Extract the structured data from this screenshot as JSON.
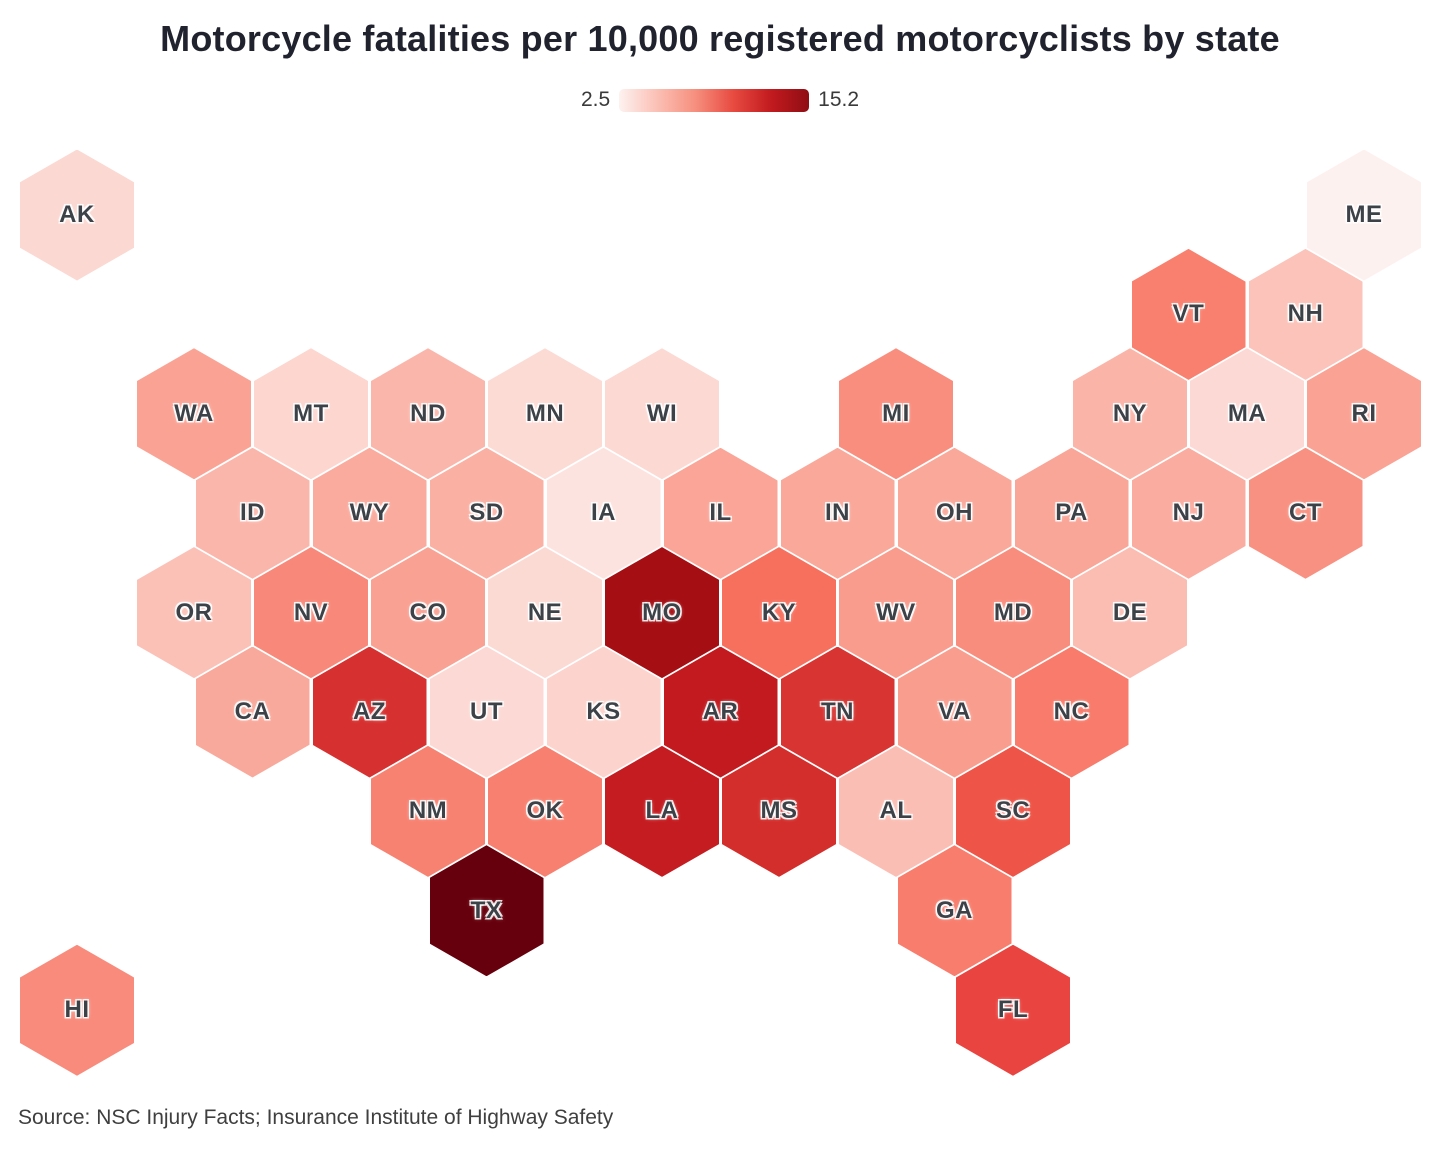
{
  "title": "Motorcycle fatalities per 10,000 registered motorcyclists by state",
  "legend": {
    "min_label": "2.5",
    "max_label": "15.2",
    "gradient_colors": [
      "#fdf2f0",
      "#fbc0b5",
      "#f6907f",
      "#e84b41",
      "#c21a1f",
      "#8f0e13"
    ]
  },
  "source": "Source: NSC Injury Facts; Insurance Institute of Highway Safety",
  "chart_data": {
    "type": "heatmap",
    "subtype": "hex-tile-state-map",
    "title": "Motorcycle fatalities per 10,000 registered motorcyclists by state",
    "legend_position": "top-center",
    "color_scale": {
      "min": 2.5,
      "max": 15.2,
      "min_color": "#fdf2f0",
      "max_color": "#8f0e13"
    },
    "states": [
      {
        "abbr": "AK",
        "row": 0,
        "col": 0,
        "offset": false,
        "color": "#fbd8d1"
      },
      {
        "abbr": "ME",
        "row": 0,
        "col": 11,
        "offset": false,
        "color": "#fdf1ef"
      },
      {
        "abbr": "VT",
        "row": 1,
        "col": 9,
        "offset": true,
        "color": "#f97f6e"
      },
      {
        "abbr": "NH",
        "row": 1,
        "col": 10,
        "offset": true,
        "color": "#fbc3b9"
      },
      {
        "abbr": "WA",
        "row": 2,
        "col": 1,
        "offset": false,
        "color": "#faa395"
      },
      {
        "abbr": "MT",
        "row": 2,
        "col": 2,
        "offset": false,
        "color": "#fcd6cf"
      },
      {
        "abbr": "ND",
        "row": 2,
        "col": 3,
        "offset": false,
        "color": "#fbb6ab"
      },
      {
        "abbr": "MN",
        "row": 2,
        "col": 4,
        "offset": false,
        "color": "#fcdbd5"
      },
      {
        "abbr": "WI",
        "row": 2,
        "col": 5,
        "offset": false,
        "color": "#fcd9d3"
      },
      {
        "abbr": "MI",
        "row": 2,
        "col": 7,
        "offset": false,
        "color": "#f98e7e"
      },
      {
        "abbr": "NY",
        "row": 2,
        "col": 9,
        "offset": false,
        "color": "#fab4a8"
      },
      {
        "abbr": "MA",
        "row": 2,
        "col": 10,
        "offset": false,
        "color": "#fcd9d4"
      },
      {
        "abbr": "RI",
        "row": 2,
        "col": 11,
        "offset": false,
        "color": "#faa294"
      },
      {
        "abbr": "ID",
        "row": 3,
        "col": 1,
        "offset": true,
        "color": "#fbb6ab"
      },
      {
        "abbr": "WY",
        "row": 3,
        "col": 2,
        "offset": true,
        "color": "#faab9e"
      },
      {
        "abbr": "SD",
        "row": 3,
        "col": 3,
        "offset": true,
        "color": "#fab0a3"
      },
      {
        "abbr": "IA",
        "row": 3,
        "col": 4,
        "offset": true,
        "color": "#fde3df"
      },
      {
        "abbr": "IL",
        "row": 3,
        "col": 5,
        "offset": true,
        "color": "#faa597"
      },
      {
        "abbr": "IN",
        "row": 3,
        "col": 6,
        "offset": true,
        "color": "#f9a89a"
      },
      {
        "abbr": "OH",
        "row": 3,
        "col": 7,
        "offset": true,
        "color": "#f9a89a"
      },
      {
        "abbr": "PA",
        "row": 3,
        "col": 8,
        "offset": true,
        "color": "#f9a597"
      },
      {
        "abbr": "NJ",
        "row": 3,
        "col": 9,
        "offset": true,
        "color": "#faaca0"
      },
      {
        "abbr": "CT",
        "row": 3,
        "col": 10,
        "offset": true,
        "color": "#f89181"
      },
      {
        "abbr": "OR",
        "row": 4,
        "col": 1,
        "offset": false,
        "color": "#fbc1b7"
      },
      {
        "abbr": "NV",
        "row": 4,
        "col": 2,
        "offset": false,
        "color": "#f8897a"
      },
      {
        "abbr": "CO",
        "row": 4,
        "col": 3,
        "offset": false,
        "color": "#f9a193"
      },
      {
        "abbr": "NE",
        "row": 4,
        "col": 4,
        "offset": false,
        "color": "#fcdad4"
      },
      {
        "abbr": "MO",
        "row": 4,
        "col": 5,
        "offset": false,
        "color": "#a50e13"
      },
      {
        "abbr": "KY",
        "row": 4,
        "col": 6,
        "offset": false,
        "color": "#f7705e"
      },
      {
        "abbr": "WV",
        "row": 4,
        "col": 7,
        "offset": false,
        "color": "#f99c8d"
      },
      {
        "abbr": "MD",
        "row": 4,
        "col": 8,
        "offset": false,
        "color": "#f98d7d"
      },
      {
        "abbr": "DE",
        "row": 4,
        "col": 9,
        "offset": false,
        "color": "#fbbcb2"
      },
      {
        "abbr": "CA",
        "row": 5,
        "col": 1,
        "offset": true,
        "color": "#f9a99b"
      },
      {
        "abbr": "AZ",
        "row": 5,
        "col": 2,
        "offset": true,
        "color": "#d63130"
      },
      {
        "abbr": "UT",
        "row": 5,
        "col": 3,
        "offset": true,
        "color": "#fcd9d4"
      },
      {
        "abbr": "KS",
        "row": 5,
        "col": 4,
        "offset": true,
        "color": "#fcd3cd"
      },
      {
        "abbr": "AR",
        "row": 5,
        "col": 5,
        "offset": true,
        "color": "#c21a1f"
      },
      {
        "abbr": "TN",
        "row": 5,
        "col": 6,
        "offset": true,
        "color": "#d73432"
      },
      {
        "abbr": "VA",
        "row": 5,
        "col": 7,
        "offset": true,
        "color": "#f99e8f"
      },
      {
        "abbr": "NC",
        "row": 5,
        "col": 8,
        "offset": true,
        "color": "#f87b6b"
      },
      {
        "abbr": "NM",
        "row": 6,
        "col": 3,
        "offset": false,
        "color": "#f88272"
      },
      {
        "abbr": "OK",
        "row": 6,
        "col": 4,
        "offset": false,
        "color": "#f88070"
      },
      {
        "abbr": "LA",
        "row": 6,
        "col": 5,
        "offset": false,
        "color": "#c51c21"
      },
      {
        "abbr": "MS",
        "row": 6,
        "col": 6,
        "offset": false,
        "color": "#d32e2c"
      },
      {
        "abbr": "AL",
        "row": 6,
        "col": 7,
        "offset": false,
        "color": "#fbbeb4"
      },
      {
        "abbr": "SC",
        "row": 6,
        "col": 8,
        "offset": false,
        "color": "#ee5447"
      },
      {
        "abbr": "TX",
        "row": 7,
        "col": 3,
        "offset": true,
        "color": "#67000d"
      },
      {
        "abbr": "GA",
        "row": 7,
        "col": 7,
        "offset": true,
        "color": "#f87d6d"
      },
      {
        "abbr": "HI",
        "row": 8,
        "col": 0,
        "offset": false,
        "color": "#f98b7c"
      },
      {
        "abbr": "FL",
        "row": 8,
        "col": 8,
        "offset": false,
        "color": "#e94440"
      }
    ]
  }
}
